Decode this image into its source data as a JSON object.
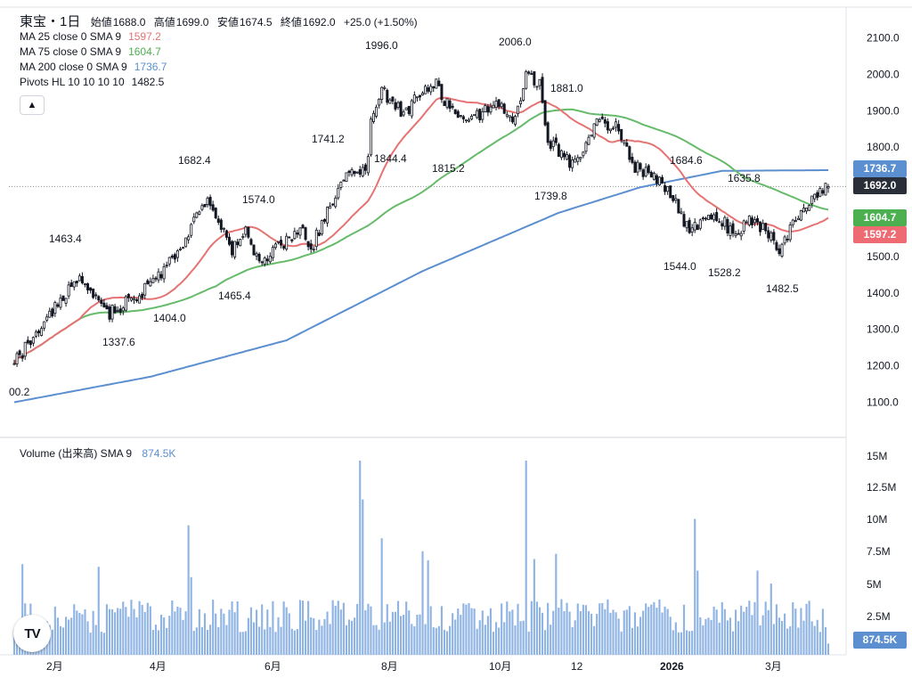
{
  "header": {
    "title": "東宝・1日",
    "open_label": "始値",
    "open": "1688.0",
    "high_label": "高値",
    "high": "1699.0",
    "low_label": "安値",
    "low": "1674.5",
    "close_label": "終値",
    "close": "1692.0",
    "change": "+25.0",
    "change_pct": "(+1.50%)"
  },
  "indicators": [
    {
      "label": "MA 25 close 0 SMA 9",
      "value": "1597.2",
      "color": "#e57373"
    },
    {
      "label": "MA 75 close 0 SMA 9",
      "value": "1604.7",
      "color": "#66bb6a"
    },
    {
      "label": "MA 200 close 0 SMA 9",
      "value": "1736.7",
      "color": "#5b8fd0"
    },
    {
      "label": "Pivots HL 10 10 10 10",
      "value": "1482.5",
      "color": "#131722"
    }
  ],
  "collapse_icon": "▲",
  "volume_legend": {
    "label": "Volume (出来高) SMA 9",
    "value": "874.5K",
    "color": "#5b8fd0"
  },
  "axis_tags": {
    "ma200": "1736.7",
    "last": "1692.0",
    "ma75": "1604.7",
    "ma25": "1597.2",
    "volume": "874.5K"
  },
  "logo_text": "TV",
  "chart_data": {
    "type": "candlestick",
    "x_labels": [
      "2月",
      "4月",
      "6月",
      "8月",
      "10月",
      "12",
      "2026",
      "3月"
    ],
    "y_ticks": [
      "2100.0",
      "2000.0",
      "1900.0",
      "1800.0",
      "1700.0",
      "1600.0",
      "1500.0",
      "1400.0",
      "1300.0",
      "1200.0",
      "1100.0"
    ],
    "ylim": [
      1050,
      2150
    ],
    "volume_ticks": [
      "15M",
      "12.5M",
      "10M",
      "7.5M",
      "5M",
      "2.5M"
    ],
    "volume_ylim": [
      0,
      16
    ],
    "pivots": [
      "00.2",
      "1463.4",
      "1337.6",
      "1404.0",
      "1682.4",
      "1574.0",
      "1465.4",
      "1741.2",
      "1844.4",
      "1996.0",
      "1815.2",
      "2006.0",
      "1881.0",
      "1739.8",
      "1684.6",
      "1544.0",
      "1635.8",
      "1528.2",
      "1482.5"
    ],
    "last_price_line": 1692.0,
    "colors": {
      "up": "#ffffff",
      "down": "#131722",
      "volume": "#8fb4e3",
      "ma25": "#e57373",
      "ma75": "#66bb6a",
      "ma200": "#5b8fd0"
    }
  }
}
